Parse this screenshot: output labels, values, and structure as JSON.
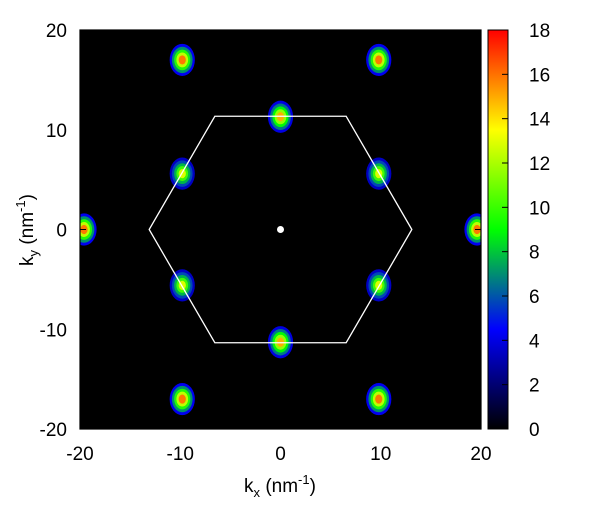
{
  "chart_data": {
    "type": "heatmap",
    "title": "",
    "xlabel": {
      "base": "k",
      "sub": "x",
      "unit_open": " (nm",
      "sup": "-1",
      "unit_close": ")"
    },
    "ylabel": {
      "base": "k",
      "sub": "y",
      "unit_open": " (nm",
      "sup": "-1",
      "unit_close": ")"
    },
    "xlim": [
      -20,
      20
    ],
    "ylim": [
      -20,
      20
    ],
    "x_ticks": [
      "-20",
      "-10",
      "0",
      "10",
      "20"
    ],
    "y_ticks": [
      "-20",
      "-10",
      "0",
      "10",
      "20"
    ],
    "colorbar": {
      "range": [
        0,
        18
      ],
      "ticks": [
        "0",
        "2",
        "4",
        "6",
        "8",
        "10",
        "12",
        "14",
        "16",
        "18"
      ],
      "colors": [
        "#000000",
        "#0000ff",
        "#00ff00",
        "#ffff00",
        "#ff0000"
      ]
    },
    "background_color": "#000000",
    "hexagon": {
      "color": "#ffffff",
      "vertices": [
        [
          13.1,
          0
        ],
        [
          6.55,
          11.35
        ],
        [
          -6.55,
          11.35
        ],
        [
          -13.1,
          0
        ],
        [
          -6.55,
          -11.35
        ],
        [
          6.55,
          -11.35
        ]
      ]
    },
    "center_marker": {
      "x": 0,
      "y": 0,
      "color": "#ffffff"
    },
    "peaks": [
      {
        "x": 0,
        "y": 11.3,
        "value": 15
      },
      {
        "x": 0,
        "y": -11.3,
        "value": 15
      },
      {
        "x": 9.8,
        "y": 5.6,
        "value": 13
      },
      {
        "x": 9.8,
        "y": -5.6,
        "value": 13
      },
      {
        "x": -9.8,
        "y": 5.6,
        "value": 13
      },
      {
        "x": -9.8,
        "y": -5.6,
        "value": 13
      },
      {
        "x": 19.6,
        "y": 0,
        "value": 16
      },
      {
        "x": -19.6,
        "y": 0,
        "value": 16
      },
      {
        "x": 9.8,
        "y": 17.0,
        "value": 16
      },
      {
        "x": -9.8,
        "y": 17.0,
        "value": 16
      },
      {
        "x": 9.8,
        "y": -17.0,
        "value": 16
      },
      {
        "x": -9.8,
        "y": -17.0,
        "value": 16
      }
    ]
  }
}
